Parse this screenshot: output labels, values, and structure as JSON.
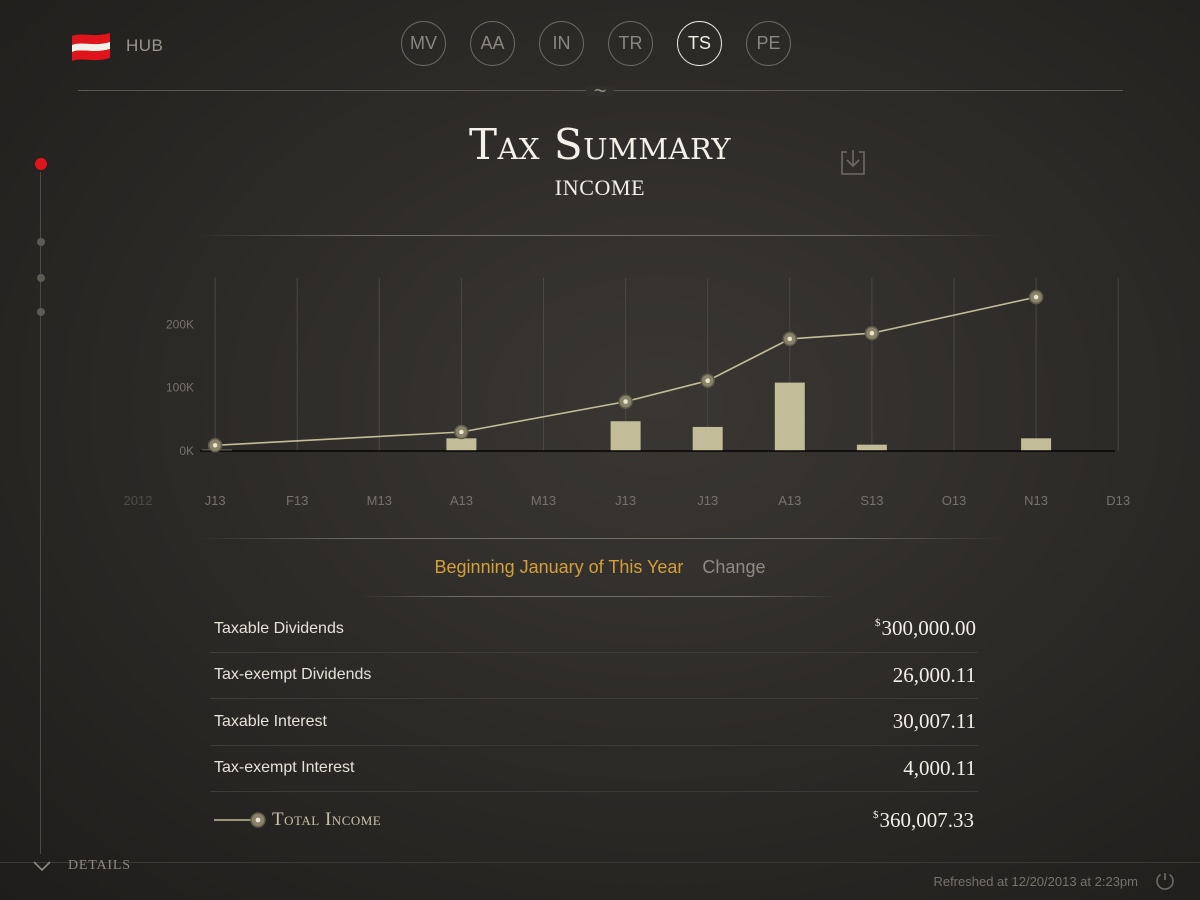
{
  "header": {
    "hub_label": "HUB",
    "nav_tabs": [
      {
        "label": "MV",
        "active": false
      },
      {
        "label": "AA",
        "active": false
      },
      {
        "label": "IN",
        "active": false
      },
      {
        "label": "TR",
        "active": false
      },
      {
        "label": "TS",
        "active": true
      },
      {
        "label": "PE",
        "active": false
      }
    ],
    "divider_glyph": "~"
  },
  "page": {
    "title": "Tax Summary",
    "subtitle": "INCOME"
  },
  "colors": {
    "accent": "#d4a038",
    "flag_red": "#e0141b",
    "bar": "#c3bc98",
    "line": "#c3bc98",
    "marker_fill": "#8a8269",
    "marker_ring": "#5e5a4c"
  },
  "icons": {
    "hub": "flag-icon",
    "download": "download-icon",
    "details": "chevron-down-icon",
    "refresh": "refresh-icon"
  },
  "chart_data": {
    "type": "bar",
    "x": [
      "2012",
      "J13",
      "F13",
      "M13",
      "A13",
      "M13",
      "J13",
      "J13",
      "A13",
      "S13",
      "O13",
      "N13",
      "D13"
    ],
    "y_ticks": [
      "0K",
      "100K",
      "200K"
    ],
    "ylim": [
      0,
      270000
    ],
    "grid": true,
    "series": [
      {
        "kind": "bar",
        "values": [
          0,
          2000,
          0,
          0,
          20000,
          0,
          47000,
          38000,
          108000,
          10000,
          0,
          20000,
          0
        ]
      },
      {
        "kind": "line",
        "values": [
          null,
          9000,
          null,
          null,
          30000,
          null,
          78000,
          111000,
          177000,
          186000,
          null,
          243000,
          null
        ]
      }
    ]
  },
  "period": {
    "label": "Beginning January of This Year",
    "change_label": "Change"
  },
  "table": {
    "rows": [
      {
        "label": "Taxable Dividends",
        "currency": "$",
        "value": "300,000.00"
      },
      {
        "label": "Tax-exempt Dividends",
        "currency": "",
        "value": "26,000.11"
      },
      {
        "label": "Taxable Interest",
        "currency": "",
        "value": "30,007.11"
      },
      {
        "label": "Tax-exempt Interest",
        "currency": "",
        "value": "4,000.11"
      }
    ],
    "total": {
      "label": "Total Income",
      "currency": "$",
      "value": "360,007.33"
    }
  },
  "footer": {
    "details_label": "DETAILS",
    "refreshed": "Refreshed at 12/20/2013 at 2:23pm"
  }
}
